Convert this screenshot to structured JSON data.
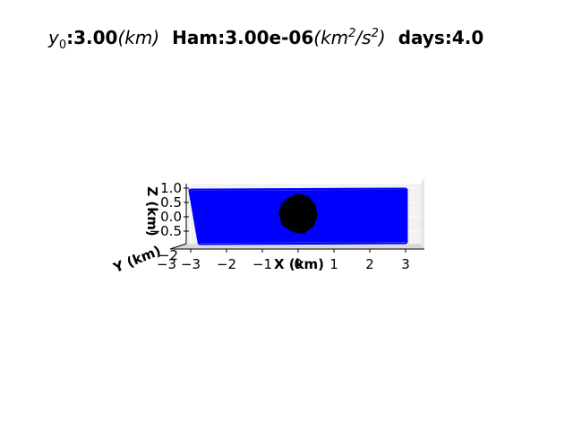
{
  "chart_data": {
    "type": "line",
    "projection": "3d",
    "title": {
      "y0_label": "y",
      "y0_sub": "0",
      "y0_value": ":3.00",
      "y0_unit": "(km)",
      "ham_label": "Ham:3.00e-06",
      "ham_unit_open": "(km",
      "ham_unit_mid": "/s",
      "ham_unit_close": ")",
      "ham_exp": "2",
      "days": "days:4.0"
    },
    "xlabel": "X (km)",
    "ylabel": "Y (km)",
    "zlabel": "Z (km)",
    "x_ticks": [
      "−3",
      "−2",
      "−1",
      "0",
      "1",
      "2",
      "3"
    ],
    "y_ticks": [
      "−3",
      "−2"
    ],
    "z_ticks": [
      "1.0",
      "0.5",
      "0.0",
      "−0.5"
    ],
    "xlim": [
      -3.2,
      3.2
    ],
    "zlim": [
      -0.9,
      1.05
    ],
    "series_color": "#0000ff",
    "body_color": "#000000",
    "pane_color": "#f2f2f2",
    "grid": true,
    "trajectory": {
      "z_start": 0.95,
      "z_end": -0.82,
      "x_amplitude_start": 3.0,
      "x_amplitude_end": 3.0
    }
  }
}
